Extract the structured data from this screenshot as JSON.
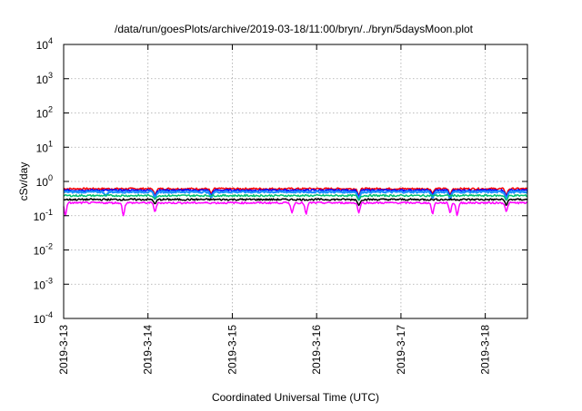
{
  "chart_data": {
    "type": "line",
    "title": "/data/run/goesPlots/archive/2019-03-18/11:00/bryn/../bryn/5daysMoon.plot",
    "xlabel": "Coordinated Universal Time (UTC)",
    "ylabel": "cSv/day",
    "yscale": "log",
    "ylim": [
      0.0001,
      10000
    ],
    "xlim": [
      "2019-03-13",
      "2019-03-18 12:00"
    ],
    "grid": true,
    "x_ticks": [
      "2019-3-13",
      "2019-3-14",
      "2019-3-15",
      "2019-3-16",
      "2019-3-17",
      "2019-3-18"
    ],
    "y_ticks": [
      {
        "base": "10",
        "exp": "-4"
      },
      {
        "base": "10",
        "exp": "-3"
      },
      {
        "base": "10",
        "exp": "-2"
      },
      {
        "base": "10",
        "exp": "-1"
      },
      {
        "base": "10",
        "exp": "0"
      },
      {
        "base": "10",
        "exp": "1"
      },
      {
        "base": "10",
        "exp": "2"
      },
      {
        "base": "10",
        "exp": "3"
      },
      {
        "base": "10",
        "exp": "4"
      }
    ],
    "series": [
      {
        "color": "#ff0000",
        "level": 0.62,
        "dips": [
          [
            "2019-03-14 02:00",
            0.42
          ],
          [
            "2019-03-14 18:00",
            0.45
          ],
          [
            "2019-03-16 12:00",
            0.4
          ],
          [
            "2019-03-17 09:00",
            0.45
          ],
          [
            "2019-03-17 14:00",
            0.42
          ],
          [
            "2019-03-18 06:00",
            0.4
          ]
        ]
      },
      {
        "color": "#0000ff",
        "level": 0.56,
        "dips": [
          [
            "2019-03-14 02:00",
            0.38
          ],
          [
            "2019-03-14 18:00",
            0.4
          ],
          [
            "2019-03-16 12:00",
            0.36
          ],
          [
            "2019-03-17 09:00",
            0.4
          ],
          [
            "2019-03-17 14:00",
            0.38
          ],
          [
            "2019-03-18 06:00",
            0.36
          ]
        ]
      },
      {
        "color": "#1e90ff",
        "level": 0.5,
        "dips": [
          [
            "2019-03-13 12:00",
            0.38
          ],
          [
            "2019-03-14 02:00",
            0.32
          ],
          [
            "2019-03-14 18:00",
            0.34
          ],
          [
            "2019-03-16 12:00",
            0.3
          ],
          [
            "2019-03-17 09:00",
            0.33
          ],
          [
            "2019-03-17 14:00",
            0.31
          ],
          [
            "2019-03-18 06:00",
            0.3
          ]
        ]
      },
      {
        "color": "#00c070",
        "level": 0.39,
        "dips": [
          [
            "2019-03-14 02:00",
            0.3
          ],
          [
            "2019-03-16 12:00",
            0.28
          ],
          [
            "2019-03-18 06:00",
            0.28
          ]
        ]
      },
      {
        "color": "#000000",
        "level": 0.3,
        "dips": [
          [
            "2019-03-14 02:00",
            0.22
          ],
          [
            "2019-03-16 12:00",
            0.2
          ],
          [
            "2019-03-18 06:00",
            0.2
          ]
        ]
      },
      {
        "color": "#ff00ff",
        "level": 0.24,
        "dips": [
          [
            "2019-03-13 00:30",
            0.1
          ],
          [
            "2019-03-13 17:00",
            0.1
          ],
          [
            "2019-03-14 02:00",
            0.13
          ],
          [
            "2019-03-15 17:00",
            0.12
          ],
          [
            "2019-03-15 21:00",
            0.11
          ],
          [
            "2019-03-16 12:00",
            0.12
          ],
          [
            "2019-03-17 09:00",
            0.11
          ],
          [
            "2019-03-17 14:00",
            0.12
          ],
          [
            "2019-03-17 16:00",
            0.1
          ],
          [
            "2019-03-18 06:00",
            0.13
          ]
        ]
      }
    ]
  }
}
